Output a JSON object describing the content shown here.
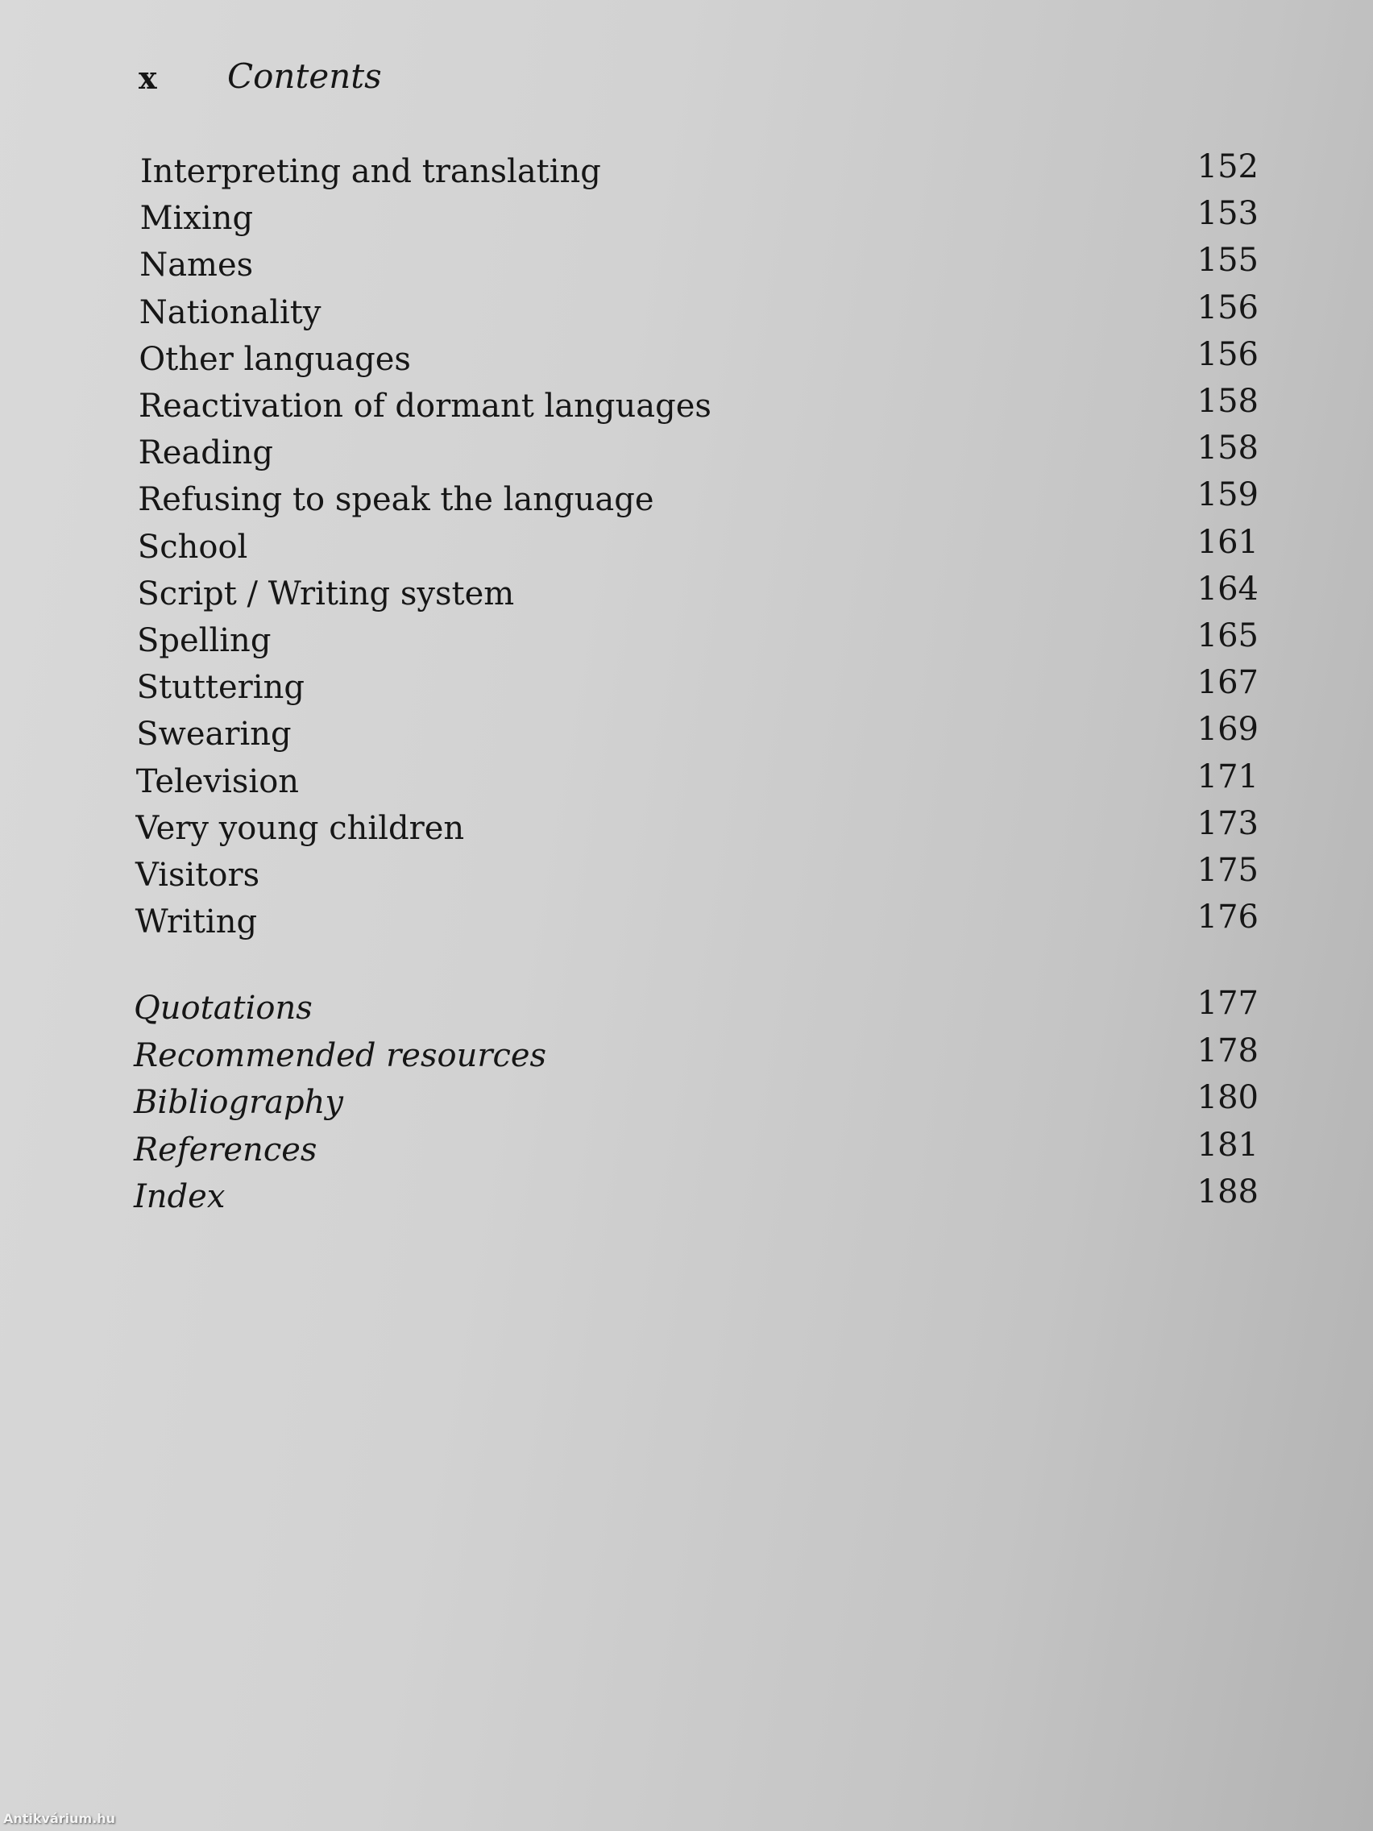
{
  "header": {
    "folio": "x",
    "running_head": "Contents"
  },
  "entries": [
    {
      "label": "Interpreting and translating",
      "page": "152"
    },
    {
      "label": "Mixing",
      "page": "153"
    },
    {
      "label": "Names",
      "page": "155"
    },
    {
      "label": "Nationality",
      "page": "156"
    },
    {
      "label": "Other languages",
      "page": "156"
    },
    {
      "label": "Reactivation of dormant languages",
      "page": "158"
    },
    {
      "label": "Reading",
      "page": "158"
    },
    {
      "label": "Refusing to speak the language",
      "page": "159"
    },
    {
      "label": "School",
      "page": "161"
    },
    {
      "label": "Script / Writing system",
      "page": "164"
    },
    {
      "label": "Spelling",
      "page": "165"
    },
    {
      "label": "Stuttering",
      "page": "167"
    },
    {
      "label": "Swearing",
      "page": "169"
    },
    {
      "label": "Television",
      "page": "171"
    },
    {
      "label": "Very young children",
      "page": "173"
    },
    {
      "label": "Visitors",
      "page": "175"
    },
    {
      "label": "Writing",
      "page": "176"
    }
  ],
  "back_matter": [
    {
      "label": "Quotations",
      "page": "177"
    },
    {
      "label": "Recommended resources",
      "page": "178"
    },
    {
      "label": "Bibliography",
      "page": "180"
    },
    {
      "label": "References",
      "page": "181"
    },
    {
      "label": "Index",
      "page": "188"
    }
  ],
  "watermark": "Antikvárium.hu"
}
